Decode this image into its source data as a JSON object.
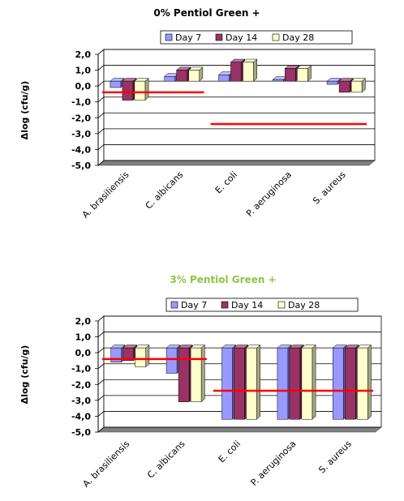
{
  "chart_data": [
    {
      "type": "bar",
      "title": "0% Pentiol Green +",
      "title_color": "#000000",
      "ylabel": "Δlog (cfu/g)",
      "ylim": [
        -5.0,
        2.0
      ],
      "yticks": [
        "2,0",
        "1,0",
        "0,0",
        "-1,0",
        "-2,0",
        "-3,0",
        "-4,0",
        "-5,0"
      ],
      "grid": true,
      "legend_position": "top",
      "categories": [
        "A. brasiliensis",
        "C. albicans",
        "E. coli",
        "P. aeruginosa",
        "S. aureus"
      ],
      "series": [
        {
          "name": "Day 7",
          "color": "#9999ff",
          "values": [
            -0.4,
            0.3,
            0.4,
            0.1,
            -0.2
          ]
        },
        {
          "name": "Day 14",
          "color": "#993366",
          "values": [
            -1.2,
            0.7,
            1.2,
            0.8,
            -0.7
          ]
        },
        {
          "name": "Day 28",
          "color": "#ffffcc",
          "values": [
            -1.2,
            0.7,
            1.2,
            0.8,
            -0.7
          ]
        }
      ],
      "threshold_lines": [
        {
          "from": 0,
          "to": 1,
          "value": -0.7,
          "color": "#ff0000"
        },
        {
          "from": 2,
          "to": 4,
          "value": -2.7,
          "color": "#ff0000"
        }
      ]
    },
    {
      "type": "bar",
      "title": "3% Pentiol Green +",
      "title_color": "#8cc63f",
      "ylabel": "Δlog (cfu/g)",
      "ylim": [
        -5.0,
        2.0
      ],
      "yticks": [
        "2,0",
        "1,0",
        "0,0",
        "-1,0",
        "-2,0",
        "-3,0",
        "-4,0",
        "-5,0"
      ],
      "grid": true,
      "legend_position": "top",
      "categories": [
        "A. brasiliensis",
        "C. albicans",
        "E. coli",
        "P. aeruginosa",
        "S. aureus"
      ],
      "series": [
        {
          "name": "Day 7",
          "color": "#9999ff",
          "values": [
            -0.9,
            -1.6,
            -4.5,
            -4.5,
            -4.5
          ]
        },
        {
          "name": "Day 14",
          "color": "#993366",
          "values": [
            -0.8,
            -3.4,
            -4.5,
            -4.5,
            -4.5
          ]
        },
        {
          "name": "Day 28",
          "color": "#ffffcc",
          "values": [
            -1.2,
            -3.4,
            -4.5,
            -4.5,
            -4.5
          ]
        }
      ],
      "threshold_lines": [
        {
          "from": 0,
          "to": 1,
          "value": -0.7,
          "color": "#ff0000"
        },
        {
          "from": 2,
          "to": 4,
          "value": -2.7,
          "color": "#ff0000"
        }
      ]
    }
  ]
}
